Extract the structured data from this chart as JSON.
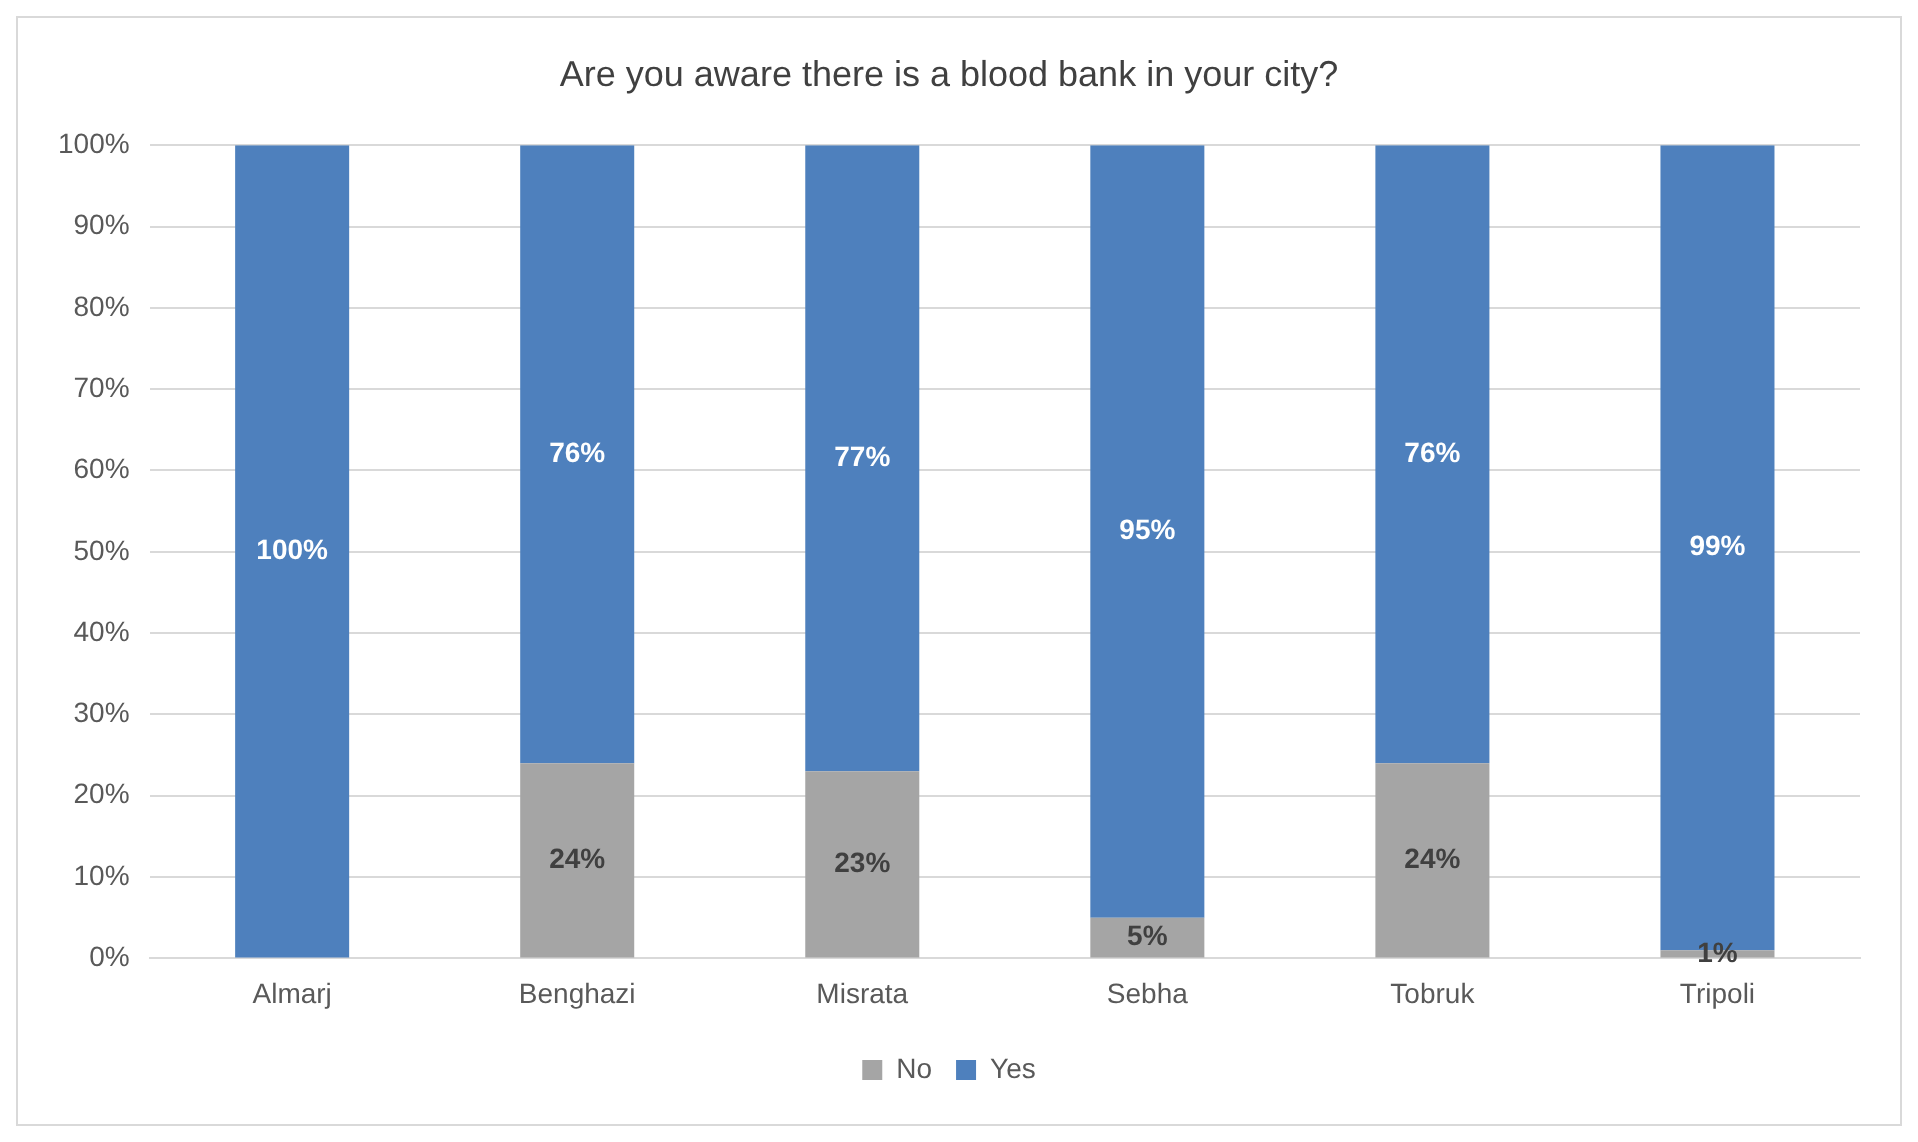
{
  "chart_data": {
    "type": "bar",
    "title": "Are you aware there is a blood bank in your city?",
    "categories": [
      "Almarj",
      "Benghazi",
      "Misrata",
      "Sebha",
      "Tobruk",
      "Tripoli"
    ],
    "series": [
      {
        "name": "No",
        "color": "#a5a5a5",
        "values": [
          0,
          24,
          23,
          5,
          24,
          1
        ],
        "value_labels": [
          null,
          "24%",
          "23%",
          "5%",
          "24%",
          "1%"
        ]
      },
      {
        "name": "Yes",
        "color": "#4e80bd",
        "values": [
          100,
          76,
          77,
          95,
          76,
          99
        ],
        "value_labels": [
          "100%",
          "76%",
          "77%",
          "95%",
          "76%",
          "99%"
        ]
      }
    ],
    "stacked": true,
    "ylim": [
      0,
      100
    ],
    "yticks": [
      {
        "value": 0,
        "label": "0%"
      },
      {
        "value": 10,
        "label": "10%"
      },
      {
        "value": 20,
        "label": "20%"
      },
      {
        "value": 30,
        "label": "30%"
      },
      {
        "value": 40,
        "label": "40%"
      },
      {
        "value": 50,
        "label": "50%"
      },
      {
        "value": 60,
        "label": "60%"
      },
      {
        "value": 70,
        "label": "70%"
      },
      {
        "value": 80,
        "label": "80%"
      },
      {
        "value": 90,
        "label": "90%"
      },
      {
        "value": 100,
        "label": "100%"
      }
    ],
    "grid": "y",
    "legend": "bottom"
  }
}
